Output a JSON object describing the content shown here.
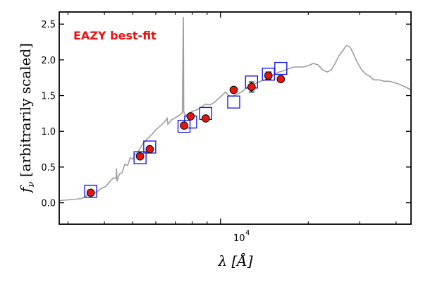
{
  "chart_data": {
    "type": "scatter",
    "annotation": "EAZY best-fit",
    "annotation_color": "#ee1111",
    "xlabel": "λ [Å]",
    "ylabel": "f_ν [arbitrarily scaled]",
    "x_scale": "log",
    "xlim": [
      2800,
      45000
    ],
    "ylim": [
      -0.3,
      2.67
    ],
    "y_ticks": [
      0.0,
      0.5,
      1.0,
      1.5,
      2.0,
      2.5
    ],
    "y_tick_labels": [
      "0.0",
      "0.5",
      "1.0",
      "1.5",
      "2.0",
      "2.5"
    ],
    "x_ticks": [
      10000
    ],
    "x_tick_labels": [
      "10^4"
    ],
    "colors": {
      "sed": "#9e9e9e",
      "model_box": "#1a1aee",
      "obs_fill": "#e8140e",
      "obs_edge": "#111111"
    },
    "series": [
      {
        "kind": "line",
        "x": [
          2800,
          3000,
          3200,
          3350,
          3450,
          3550,
          3700,
          3900,
          4050,
          4200,
          4300,
          4390,
          4400,
          4420,
          4500,
          4600,
          4700,
          4800,
          4861,
          4900,
          5000,
          5100,
          5200,
          5400,
          5600,
          5800,
          6000,
          6200,
          6400,
          6563,
          6600,
          6800,
          7000,
          7200,
          7400,
          7460,
          7480,
          7520,
          7600,
          7800,
          8000,
          8300,
          8600,
          8900,
          9200,
          9500,
          9800,
          10100,
          10400,
          10700,
          11000,
          11400,
          11800,
          12200,
          12700,
          13200,
          13700,
          14200,
          14700,
          15300,
          15900,
          16500,
          17200,
          17900,
          18600,
          19300,
          20000,
          20800,
          21600,
          22400,
          23200,
          24000,
          24800,
          25500,
          26200,
          27000,
          27800,
          28600,
          29500,
          30500,
          31500,
          32500,
          33500,
          35000,
          36500,
          38000,
          39500,
          41000,
          42500,
          44000,
          45000
        ],
        "y": [
          0.03,
          0.04,
          0.05,
          0.06,
          0.09,
          0.14,
          0.13,
          0.2,
          0.23,
          0.31,
          0.35,
          0.34,
          0.48,
          0.3,
          0.4,
          0.42,
          0.54,
          0.52,
          0.58,
          0.63,
          0.61,
          0.68,
          0.7,
          0.82,
          0.89,
          0.95,
          1.02,
          1.07,
          1.12,
          1.18,
          1.1,
          1.16,
          1.19,
          1.22,
          1.26,
          2.6,
          1.28,
          1.25,
          1.22,
          1.25,
          1.28,
          1.3,
          1.34,
          1.38,
          1.37,
          1.4,
          1.45,
          1.5,
          1.55,
          1.5,
          1.49,
          1.52,
          1.55,
          1.6,
          1.64,
          1.67,
          1.7,
          1.72,
          1.75,
          1.8,
          1.83,
          1.85,
          1.88,
          1.9,
          1.9,
          1.9,
          1.92,
          1.95,
          1.93,
          1.86,
          1.83,
          1.86,
          1.96,
          2.06,
          2.12,
          2.2,
          2.18,
          2.08,
          1.96,
          1.86,
          1.8,
          1.77,
          1.72,
          1.72,
          1.7,
          1.7,
          1.68,
          1.66,
          1.63,
          1.6,
          1.58
        ]
      },
      {
        "kind": "boxes",
        "x": [
          3590,
          5300,
          5720,
          7500,
          7900,
          8900,
          11100,
          12780,
          14600,
          16100
        ],
        "y": [
          0.16,
          0.63,
          0.78,
          1.07,
          1.13,
          1.25,
          1.41,
          1.69,
          1.8,
          1.88
        ]
      },
      {
        "kind": "points",
        "x": [
          3590,
          5300,
          5720,
          7500,
          7900,
          8900,
          11100,
          12780,
          14600,
          16100
        ],
        "y": [
          0.14,
          0.65,
          0.75,
          1.08,
          1.21,
          1.18,
          1.58,
          1.62,
          1.78,
          1.73
        ],
        "yerr": [
          0.0,
          0.0,
          0.0,
          0.0,
          0.0,
          0.0,
          0.0,
          0.07,
          0.05,
          0.0
        ]
      }
    ]
  }
}
